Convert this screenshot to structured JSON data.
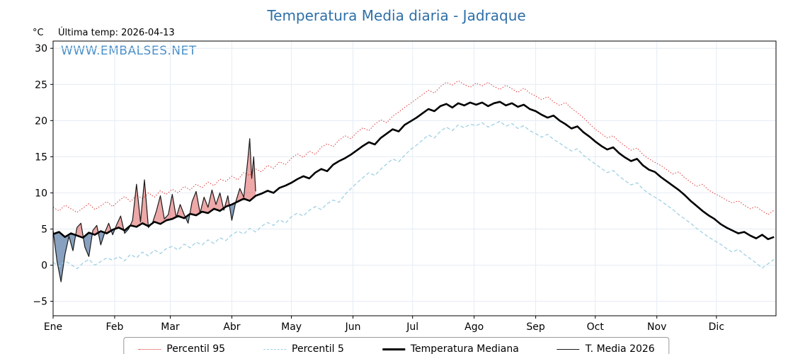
{
  "chart_data": {
    "type": "line",
    "title": "Temperatura Media diaria - Jadraque",
    "ylabel": "°C",
    "annotation_last_temp": "Última temp: 2026-04-13",
    "watermark": "WWW.EMBALSES.NET",
    "legend_position": "bottom",
    "grid": true,
    "colors": {
      "title": "#2e6fa8",
      "watermark": "#4a90ca",
      "grid": "#e4ecf4"
    },
    "x_axis": {
      "range": [
        1,
        365
      ],
      "tick_days": [
        1,
        32,
        60,
        91,
        121,
        152,
        182,
        213,
        244,
        274,
        305,
        335
      ],
      "tick_labels": [
        "Ene",
        "Feb",
        "Mar",
        "Abr",
        "May",
        "Jun",
        "Jul",
        "Ago",
        "Sep",
        "Oct",
        "Nov",
        "Dic"
      ]
    },
    "y_axis": {
      "range": [
        -7,
        31
      ],
      "ticks": [
        -5,
        0,
        5,
        10,
        15,
        20,
        25,
        30
      ]
    },
    "days": [
      1,
      4,
      7,
      10,
      13,
      16,
      19,
      22,
      25,
      28,
      31,
      34,
      37,
      40,
      43,
      46,
      49,
      52,
      55,
      58,
      61,
      64,
      67,
      70,
      73,
      76,
      79,
      82,
      85,
      88,
      91,
      94,
      97,
      100,
      103,
      106,
      109,
      112,
      115,
      118,
      121,
      124,
      127,
      130,
      133,
      136,
      139,
      142,
      145,
      148,
      151,
      154,
      157,
      160,
      163,
      166,
      169,
      172,
      175,
      178,
      181,
      184,
      187,
      190,
      193,
      196,
      199,
      202,
      205,
      208,
      211,
      214,
      217,
      220,
      223,
      226,
      229,
      232,
      235,
      238,
      241,
      244,
      247,
      250,
      253,
      256,
      259,
      262,
      265,
      268,
      271,
      274,
      277,
      280,
      283,
      286,
      289,
      292,
      295,
      298,
      301,
      304,
      307,
      310,
      313,
      316,
      319,
      322,
      325,
      328,
      331,
      334,
      337,
      340,
      343,
      346,
      349,
      352,
      355,
      358,
      361,
      364
    ],
    "series": [
      {
        "name": "Percentil 95",
        "color": "#dd2c2c",
        "line": "dotted",
        "width": 1,
        "values": [
          8.0,
          7.5,
          8.3,
          7.8,
          7.3,
          7.9,
          8.5,
          7.7,
          8.2,
          8.8,
          8.1,
          8.9,
          9.5,
          8.8,
          9.7,
          9.2,
          10.0,
          9.4,
          10.3,
          9.8,
          10.5,
          10.0,
          10.9,
          10.4,
          11.2,
          10.7,
          11.5,
          11.0,
          11.9,
          11.6,
          12.3,
          11.8,
          12.8,
          12.4,
          13.3,
          12.9,
          13.8,
          13.4,
          14.3,
          13.9,
          14.8,
          15.4,
          14.9,
          15.8,
          15.3,
          16.3,
          16.8,
          16.4,
          17.3,
          17.9,
          17.5,
          18.4,
          19.0,
          18.6,
          19.5,
          20.1,
          19.7,
          20.6,
          21.2,
          21.8,
          22.4,
          23.0,
          23.6,
          24.2,
          23.8,
          24.7,
          25.3,
          24.9,
          25.5,
          25.0,
          24.6,
          25.2,
          24.8,
          25.3,
          24.7,
          24.3,
          24.9,
          24.4,
          23.9,
          24.5,
          23.8,
          23.4,
          22.9,
          23.3,
          22.6,
          22.1,
          22.5,
          21.7,
          21.1,
          20.4,
          19.6,
          18.8,
          18.2,
          17.6,
          17.9,
          17.1,
          16.5,
          15.9,
          16.2,
          15.3,
          14.7,
          14.2,
          13.8,
          13.2,
          12.6,
          12.9,
          12.1,
          11.5,
          10.9,
          11.2,
          10.4,
          9.9,
          9.5,
          9.0,
          8.6,
          8.9,
          8.3,
          7.8,
          8.1,
          7.5,
          7.0,
          7.6
        ]
      },
      {
        "name": "Percentil 5",
        "color": "#9fd0e4",
        "line": "dashed",
        "width": 1.3,
        "values": [
          0.4,
          -0.2,
          0.6,
          0.1,
          -0.5,
          0.3,
          0.8,
          0.0,
          0.5,
          1.0,
          0.7,
          1.2,
          0.6,
          1.5,
          1.0,
          1.8,
          1.3,
          2.1,
          1.6,
          2.3,
          2.6,
          2.1,
          2.9,
          2.4,
          3.2,
          2.8,
          3.5,
          3.0,
          3.8,
          3.4,
          4.2,
          4.7,
          4.3,
          5.1,
          4.6,
          5.4,
          5.9,
          5.5,
          6.3,
          5.8,
          6.7,
          7.2,
          6.8,
          7.6,
          8.1,
          7.7,
          8.5,
          9.0,
          8.7,
          9.8,
          10.6,
          11.4,
          12.1,
          12.8,
          12.4,
          13.3,
          14.0,
          14.7,
          14.3,
          15.2,
          16.0,
          16.6,
          17.3,
          18.0,
          17.6,
          18.5,
          19.1,
          18.6,
          19.4,
          19.0,
          19.5,
          19.3,
          19.7,
          19.1,
          19.5,
          19.9,
          19.2,
          19.6,
          18.9,
          19.3,
          18.6,
          18.2,
          17.7,
          18.1,
          17.4,
          16.9,
          16.3,
          15.8,
          16.1,
          15.2,
          14.6,
          14.0,
          13.4,
          12.8,
          13.1,
          12.3,
          11.7,
          11.1,
          11.4,
          10.5,
          9.9,
          9.4,
          8.9,
          8.3,
          7.7,
          7.0,
          6.4,
          5.8,
          5.1,
          4.5,
          3.9,
          3.4,
          2.9,
          2.3,
          1.8,
          2.2,
          1.5,
          0.9,
          0.3,
          -0.4,
          0.2,
          0.8
        ]
      },
      {
        "name": "Temperatura Mediana",
        "color": "#000000",
        "line": "solid",
        "width": 2.6,
        "values": [
          4.3,
          4.6,
          3.9,
          4.4,
          4.1,
          3.8,
          4.5,
          4.2,
          4.7,
          4.4,
          4.9,
          5.2,
          4.8,
          5.5,
          5.3,
          5.8,
          5.4,
          6.0,
          5.7,
          6.2,
          6.4,
          6.8,
          6.5,
          7.1,
          6.9,
          7.4,
          7.2,
          7.8,
          7.5,
          8.1,
          8.4,
          8.8,
          9.2,
          8.9,
          9.6,
          9.9,
          10.3,
          10.0,
          10.7,
          11.0,
          11.4,
          11.9,
          12.3,
          12.0,
          12.8,
          13.3,
          13.0,
          13.9,
          14.4,
          14.8,
          15.3,
          15.9,
          16.5,
          17.0,
          16.7,
          17.6,
          18.2,
          18.8,
          18.5,
          19.4,
          19.9,
          20.4,
          21.0,
          21.6,
          21.3,
          22.0,
          22.3,
          21.8,
          22.4,
          22.1,
          22.5,
          22.2,
          22.5,
          22.0,
          22.4,
          22.6,
          22.1,
          22.4,
          21.9,
          22.2,
          21.6,
          21.3,
          20.8,
          20.4,
          20.7,
          20.0,
          19.5,
          18.9,
          19.2,
          18.4,
          17.8,
          17.1,
          16.5,
          16.0,
          16.3,
          15.5,
          14.9,
          14.4,
          14.7,
          13.8,
          13.2,
          12.9,
          12.2,
          11.6,
          11.0,
          10.4,
          9.7,
          8.9,
          8.2,
          7.5,
          6.9,
          6.4,
          5.7,
          5.2,
          4.8,
          4.4,
          4.6,
          4.1,
          3.7,
          4.2,
          3.6,
          3.9
        ]
      },
      {
        "name": "T. Media 2026",
        "color": "#1a1a1a",
        "line": "solid",
        "width": 1.2,
        "days": [
          1,
          3,
          5,
          7,
          9,
          11,
          13,
          15,
          17,
          19,
          21,
          23,
          25,
          27,
          29,
          31,
          33,
          35,
          37,
          39,
          41,
          43,
          45,
          47,
          49,
          51,
          53,
          55,
          57,
          59,
          61,
          63,
          65,
          67,
          69,
          71,
          73,
          75,
          77,
          79,
          81,
          83,
          85,
          87,
          89,
          91,
          93,
          95,
          97,
          99,
          100,
          101,
          102,
          103
        ],
        "values": [
          4.8,
          0.5,
          -2.3,
          1.5,
          4.0,
          2.0,
          5.2,
          5.8,
          2.5,
          1.2,
          4.8,
          5.5,
          2.8,
          4.5,
          5.8,
          4.2,
          5.6,
          6.8,
          4.4,
          5.0,
          6.2,
          11.2,
          6.0,
          11.8,
          5.2,
          5.8,
          7.5,
          9.6,
          6.4,
          7.0,
          9.8,
          6.6,
          8.4,
          7.0,
          5.8,
          8.8,
          10.2,
          7.2,
          9.4,
          8.0,
          10.4,
          8.4,
          10.0,
          7.6,
          9.6,
          6.2,
          8.8,
          10.6,
          9.4,
          14.5,
          17.5,
          12.0,
          15.0,
          10.2
        ]
      }
    ],
    "fill_between": {
      "upper": "T. Media 2026",
      "baseline": "Temperatura Mediana",
      "above_color": "rgba(222,82,82,0.5)",
      "below_color": "rgba(58,98,150,0.6)"
    }
  }
}
